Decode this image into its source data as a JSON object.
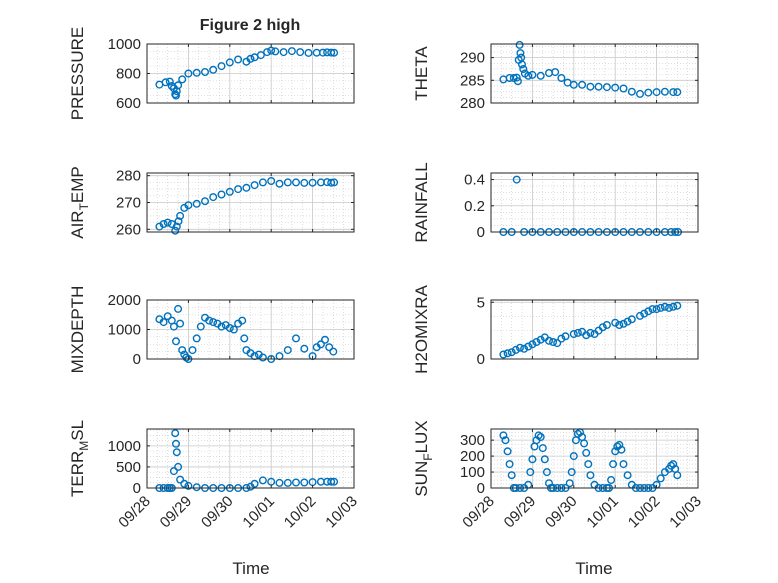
{
  "figure": {
    "title": "Figure 2 high",
    "xlabel": "Time"
  },
  "colors": {
    "marker": "#0072BD",
    "axis": "#262626",
    "grid": "#c8c8c8"
  },
  "chart_data": [
    {
      "type": "scatter",
      "name": "PRESSURE",
      "ylabel": "PRESSURE",
      "ylim": [
        600,
        1000
      ],
      "yticks": [
        600,
        800,
        1000
      ],
      "ytick_labels": [
        "600",
        "800",
        "1000"
      ],
      "xlim": [
        0,
        5
      ],
      "xtick_labels": [
        "09/28",
        "09/29",
        "09/30",
        "10/01",
        "10/02",
        "10/03"
      ],
      "grid": true,
      "x": [
        0.3,
        0.45,
        0.55,
        0.6,
        0.65,
        0.68,
        0.7,
        0.72,
        0.75,
        0.85,
        1.0,
        1.2,
        1.4,
        1.6,
        1.8,
        2.0,
        2.2,
        2.4,
        2.5,
        2.6,
        2.75,
        2.9,
        3.0,
        3.1,
        3.3,
        3.5,
        3.7,
        3.9,
        4.1,
        4.25,
        4.35,
        4.45,
        4.52
      ],
      "y": [
        725,
        740,
        745,
        715,
        700,
        660,
        650,
        680,
        720,
        760,
        800,
        805,
        810,
        825,
        850,
        875,
        895,
        880,
        900,
        910,
        925,
        945,
        955,
        950,
        945,
        952,
        945,
        940,
        941,
        942,
        943,
        942,
        941
      ]
    },
    {
      "type": "scatter",
      "name": "THETA",
      "ylabel": "THETA",
      "ylim": [
        280,
        293
      ],
      "yticks": [
        280,
        285,
        290
      ],
      "ytick_labels": [
        "280",
        "285",
        "290"
      ],
      "xlim": [
        0,
        5
      ],
      "xtick_labels": [
        "09/28",
        "09/29",
        "09/30",
        "10/01",
        "10/02",
        "10/03"
      ],
      "grid": true,
      "x": [
        0.3,
        0.45,
        0.55,
        0.62,
        0.65,
        0.67,
        0.69,
        0.71,
        0.73,
        0.75,
        0.78,
        0.82,
        0.9,
        1.0,
        1.2,
        1.4,
        1.55,
        1.7,
        1.85,
        2.0,
        2.2,
        2.4,
        2.6,
        2.8,
        3.0,
        3.2,
        3.4,
        3.6,
        3.8,
        4.0,
        4.2,
        4.4,
        4.5
      ],
      "y": [
        285.2,
        285.5,
        285.5,
        285.6,
        284.8,
        289.5,
        292.8,
        291.0,
        290.0,
        288.5,
        287.5,
        286.5,
        286.0,
        286.2,
        286.0,
        286.6,
        286.8,
        285.5,
        284.5,
        284.0,
        284.0,
        283.6,
        283.6,
        283.5,
        283.4,
        283.2,
        282.5,
        282.0,
        282.3,
        282.4,
        282.5,
        282.4,
        282.4
      ]
    },
    {
      "type": "scatter",
      "name": "AIR_TEMP",
      "ylabel": "AIR_TEMP",
      "ylim": [
        259,
        281
      ],
      "yticks": [
        260,
        270,
        280
      ],
      "ytick_labels": [
        "260",
        "270",
        "280"
      ],
      "xlim": [
        0,
        5
      ],
      "xtick_labels": [
        "09/28",
        "09/29",
        "09/30",
        "10/01",
        "10/02",
        "10/03"
      ],
      "grid": true,
      "x": [
        0.3,
        0.4,
        0.5,
        0.6,
        0.68,
        0.72,
        0.76,
        0.8,
        0.9,
        1.0,
        1.2,
        1.4,
        1.6,
        1.8,
        2.0,
        2.2,
        2.4,
        2.6,
        2.8,
        3.0,
        3.2,
        3.4,
        3.6,
        3.8,
        4.0,
        4.2,
        4.35,
        4.45,
        4.52
      ],
      "y": [
        261,
        262,
        262.5,
        262,
        259.5,
        261,
        263,
        265,
        268,
        269,
        269.5,
        270.5,
        272,
        273,
        274,
        275,
        275.5,
        276.5,
        277.5,
        278,
        277,
        277.5,
        277.5,
        277.3,
        277.4,
        277.5,
        277.6,
        277.4,
        277.5
      ]
    },
    {
      "type": "scatter",
      "name": "RAINFALL",
      "ylabel": "RAINFALL",
      "ylim": [
        0,
        0.45
      ],
      "yticks": [
        0,
        0.2,
        0.4
      ],
      "ytick_labels": [
        "0",
        "0.2",
        "0.4"
      ],
      "xlim": [
        0,
        5
      ],
      "xtick_labels": [
        "09/28",
        "09/29",
        "09/30",
        "10/01",
        "10/02",
        "10/03"
      ],
      "grid": true,
      "x": [
        0.3,
        0.5,
        0.62,
        0.8,
        1.0,
        1.2,
        1.4,
        1.6,
        1.8,
        2.0,
        2.2,
        2.4,
        2.6,
        2.8,
        3.0,
        3.2,
        3.4,
        3.6,
        3.8,
        4.0,
        4.2,
        4.35,
        4.45,
        4.52
      ],
      "y": [
        0,
        0,
        0.4,
        0,
        0,
        0,
        0,
        0,
        0,
        0,
        0,
        0,
        0,
        0,
        0,
        0,
        0,
        0,
        0,
        0,
        0,
        0,
        0,
        0
      ]
    },
    {
      "type": "scatter",
      "name": "MIXDEPTH",
      "ylabel": "MIXDEPTH",
      "ylim": [
        0,
        2000
      ],
      "yticks": [
        0,
        1000,
        2000
      ],
      "ytick_labels": [
        "0",
        "1000",
        "2000"
      ],
      "xlim": [
        0,
        5
      ],
      "xtick_labels": [
        "09/28",
        "09/29",
        "09/30",
        "10/01",
        "10/02",
        "10/03"
      ],
      "grid": true,
      "x": [
        0.3,
        0.4,
        0.5,
        0.6,
        0.65,
        0.7,
        0.75,
        0.8,
        0.85,
        0.9,
        0.95,
        1.0,
        1.1,
        1.2,
        1.3,
        1.4,
        1.5,
        1.6,
        1.7,
        1.8,
        1.9,
        2.0,
        2.1,
        2.2,
        2.3,
        2.35,
        2.4,
        2.5,
        2.6,
        2.7,
        2.8,
        3.0,
        3.2,
        3.4,
        3.6,
        3.8,
        4.0,
        4.1,
        4.2,
        4.3,
        4.4,
        4.5
      ],
      "y": [
        1350,
        1250,
        1450,
        1300,
        1100,
        600,
        1700,
        1200,
        300,
        150,
        50,
        0,
        300,
        700,
        1100,
        1400,
        1300,
        1250,
        1200,
        1100,
        1150,
        1050,
        1000,
        1200,
        1300,
        700,
        300,
        200,
        100,
        150,
        50,
        0,
        100,
        300,
        700,
        350,
        100,
        400,
        500,
        650,
        400,
        250
      ]
    },
    {
      "type": "scatter",
      "name": "H2OMIXRA",
      "ylabel": "H2OMIXRA",
      "ylim": [
        0,
        5.2
      ],
      "yticks": [
        0,
        5
      ],
      "ytick_labels": [
        "0",
        "5"
      ],
      "xlim": [
        0,
        5
      ],
      "xtick_labels": [
        "09/28",
        "09/29",
        "09/30",
        "10/01",
        "10/02",
        "10/03"
      ],
      "grid": true,
      "x": [
        0.3,
        0.4,
        0.5,
        0.6,
        0.7,
        0.8,
        0.9,
        1.0,
        1.1,
        1.2,
        1.3,
        1.4,
        1.5,
        1.6,
        1.7,
        1.8,
        2.0,
        2.1,
        2.2,
        2.3,
        2.4,
        2.5,
        2.6,
        2.7,
        2.8,
        3.0,
        3.1,
        3.2,
        3.3,
        3.4,
        3.6,
        3.7,
        3.8,
        3.9,
        4.0,
        4.1,
        4.2,
        4.3,
        4.4,
        4.5
      ],
      "y": [
        0.4,
        0.5,
        0.6,
        0.8,
        1.0,
        0.9,
        1.1,
        1.3,
        1.5,
        1.7,
        1.9,
        1.6,
        1.5,
        1.4,
        1.8,
        2.0,
        2.2,
        2.3,
        2.4,
        2.1,
        2.3,
        2.2,
        2.5,
        2.8,
        3.0,
        3.2,
        3.0,
        3.1,
        3.3,
        3.5,
        3.8,
        4.0,
        4.2,
        4.4,
        4.4,
        4.5,
        4.6,
        4.5,
        4.6,
        4.7
      ]
    },
    {
      "type": "scatter",
      "name": "TERR_MSL",
      "ylabel": "TERR_MSL",
      "ylim": [
        0,
        1400
      ],
      "yticks": [
        0,
        500,
        1000
      ],
      "ytick_labels": [
        "0",
        "500",
        "1000"
      ],
      "xlim": [
        0,
        5
      ],
      "xtick_labels": [
        "09/28",
        "09/29",
        "09/30",
        "10/01",
        "10/02",
        "10/03"
      ],
      "grid": true,
      "x": [
        0.3,
        0.4,
        0.5,
        0.55,
        0.6,
        0.65,
        0.68,
        0.7,
        0.72,
        0.75,
        0.8,
        0.9,
        1.0,
        1.2,
        1.4,
        1.6,
        1.8,
        2.0,
        2.2,
        2.4,
        2.5,
        2.6,
        2.8,
        3.0,
        3.2,
        3.4,
        3.6,
        3.8,
        4.0,
        4.2,
        4.35,
        4.45,
        4.52
      ],
      "y": [
        0,
        0,
        0,
        0,
        0,
        400,
        1300,
        1050,
        850,
        500,
        200,
        100,
        50,
        20,
        0,
        0,
        0,
        0,
        0,
        0,
        30,
        100,
        180,
        150,
        120,
        120,
        130,
        130,
        140,
        150,
        150,
        150,
        150
      ]
    },
    {
      "type": "scatter",
      "name": "SUN_FLUX",
      "ylabel": "SUN_FLUX",
      "ylim": [
        0,
        370
      ],
      "yticks": [
        0,
        100,
        200,
        300
      ],
      "ytick_labels": [
        "0",
        "100",
        "200",
        "300"
      ],
      "xlim": [
        0,
        5
      ],
      "xtick_labels": [
        "09/28",
        "09/29",
        "09/30",
        "10/01",
        "10/02",
        "10/03"
      ],
      "grid": true,
      "x": [
        0.3,
        0.35,
        0.4,
        0.45,
        0.5,
        0.55,
        0.6,
        0.7,
        0.8,
        0.9,
        0.95,
        1.0,
        1.05,
        1.1,
        1.15,
        1.2,
        1.25,
        1.3,
        1.35,
        1.4,
        1.45,
        1.5,
        1.6,
        1.7,
        1.8,
        1.9,
        1.95,
        2.0,
        2.05,
        2.1,
        2.15,
        2.2,
        2.25,
        2.3,
        2.35,
        2.4,
        2.5,
        2.6,
        2.7,
        2.8,
        2.85,
        2.9,
        2.95,
        3.0,
        3.05,
        3.1,
        3.15,
        3.2,
        3.3,
        3.4,
        3.5,
        3.6,
        3.7,
        3.8,
        3.9,
        4.0,
        4.1,
        4.2,
        4.3,
        4.35,
        4.4,
        4.45,
        4.5
      ],
      "y": [
        330,
        300,
        230,
        150,
        80,
        0,
        0,
        0,
        0,
        20,
        100,
        180,
        260,
        300,
        330,
        320,
        250,
        180,
        100,
        30,
        0,
        0,
        0,
        0,
        0,
        30,
        100,
        200,
        300,
        340,
        350,
        320,
        280,
        220,
        150,
        80,
        20,
        0,
        0,
        0,
        0,
        50,
        150,
        230,
        260,
        270,
        240,
        150,
        80,
        20,
        0,
        0,
        0,
        0,
        0,
        20,
        60,
        100,
        120,
        140,
        150,
        120,
        80
      ]
    }
  ]
}
